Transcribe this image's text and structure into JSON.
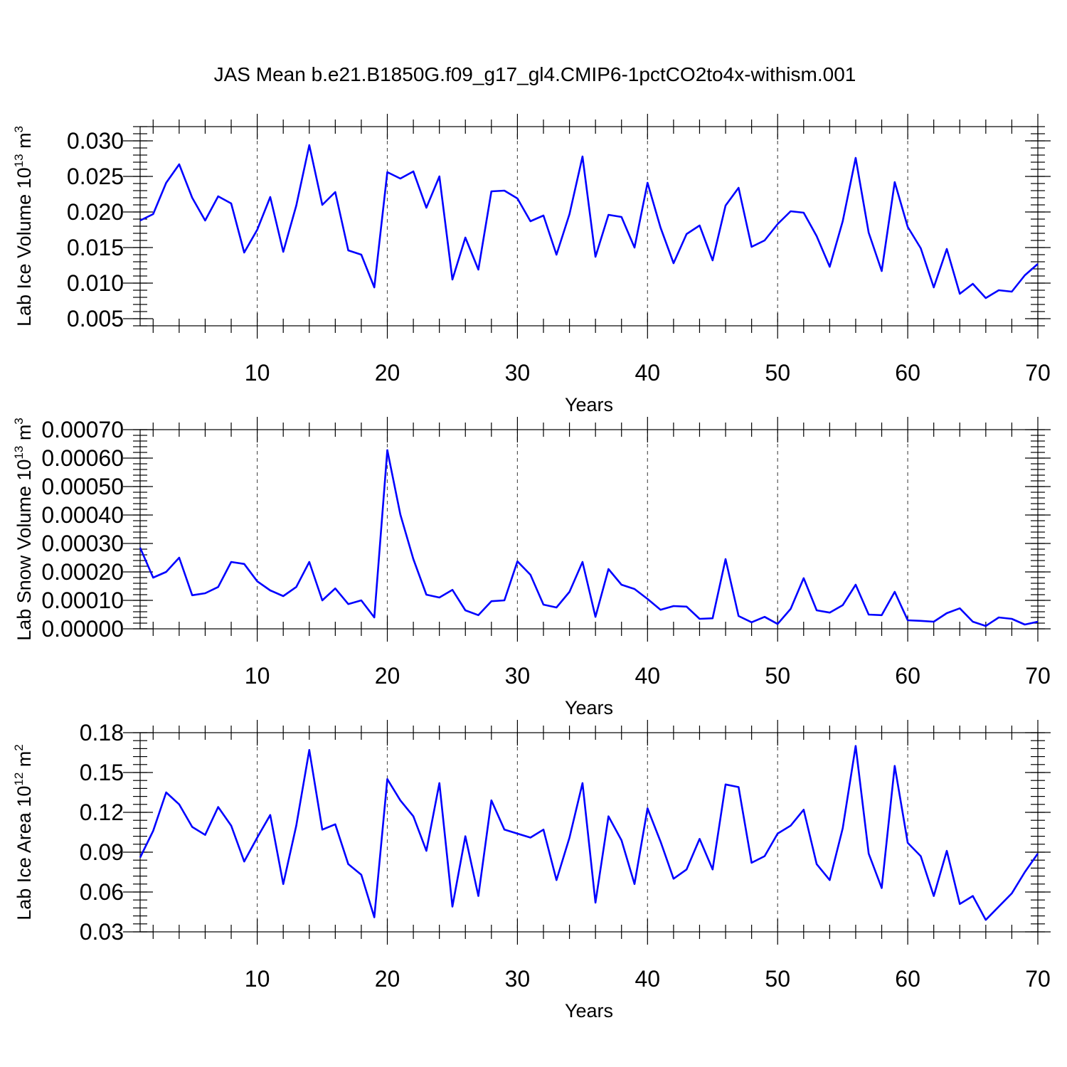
{
  "title": "JAS Mean b.e21.B1850G.f09_g17_gl4.CMIP6-1pctCO2to4x-withism.001",
  "chart_data": [
    {
      "type": "line",
      "ylabel": "Lab Ice Volume 10",
      "ylabel_exp": "13",
      "ylabel_unit": " m",
      "ylabel_unit_exp": "3",
      "xlabel": "Years",
      "xlim": [
        1,
        70
      ],
      "ylim": [
        0.004,
        0.032
      ],
      "yticks": [
        0.005,
        0.01,
        0.015,
        0.02,
        0.025,
        0.03
      ],
      "ytick_labels": [
        "0.005",
        "0.010",
        "0.015",
        "0.020",
        "0.025",
        "0.030"
      ],
      "xticks": [
        10,
        20,
        30,
        40,
        50,
        60,
        70
      ],
      "xtick_labels": [
        "10",
        "20",
        "30",
        "40",
        "50",
        "60",
        "70"
      ],
      "color": "#0000ff",
      "values": [
        0.0188,
        0.0197,
        0.0241,
        0.0267,
        0.022,
        0.0188,
        0.0222,
        0.0212,
        0.0143,
        0.0175,
        0.0221,
        0.0144,
        0.0209,
        0.0294,
        0.021,
        0.0228,
        0.0146,
        0.014,
        0.0094,
        0.0256,
        0.0247,
        0.0257,
        0.0206,
        0.025,
        0.0105,
        0.0164,
        0.0119,
        0.0229,
        0.023,
        0.0219,
        0.0187,
        0.0195,
        0.014,
        0.0197,
        0.0278,
        0.0137,
        0.0196,
        0.0193,
        0.015,
        0.0241,
        0.0178,
        0.0128,
        0.0169,
        0.0181,
        0.0132,
        0.0209,
        0.0234,
        0.0151,
        0.016,
        0.0183,
        0.0201,
        0.0199,
        0.0166,
        0.0123,
        0.0187,
        0.0276,
        0.0171,
        0.0117,
        0.0242,
        0.0179,
        0.0149,
        0.0094,
        0.0148,
        0.0085,
        0.0099,
        0.0079,
        0.009,
        0.0088,
        0.0111,
        0.0127
      ]
    },
    {
      "type": "line",
      "ylabel": "Lab Snow Volume 10",
      "ylabel_exp": "13",
      "ylabel_unit": " m",
      "ylabel_unit_exp": "3",
      "xlabel": "Years",
      "xlim": [
        1,
        70
      ],
      "ylim": [
        0.0,
        0.0007
      ],
      "yticks": [
        0.0,
        0.0001,
        0.0002,
        0.0003,
        0.0004,
        0.0005,
        0.0006,
        0.0007
      ],
      "ytick_labels": [
        "0.00000",
        "0.00010",
        "0.00020",
        "0.00030",
        "0.00040",
        "0.00050",
        "0.00060",
        "0.00070"
      ],
      "xticks": [
        10,
        20,
        30,
        40,
        50,
        60,
        70
      ],
      "xtick_labels": [
        "10",
        "20",
        "30",
        "40",
        "50",
        "60",
        "70"
      ],
      "color": "#0000ff",
      "values": [
        0.000285,
        0.00018,
        0.0002,
        0.00025,
        0.000118,
        0.000125,
        0.000147,
        0.000235,
        0.000228,
        0.000167,
        0.000135,
        0.000115,
        0.000147,
        0.000235,
        0.0001,
        0.000142,
        8.7e-05,
        0.0001,
        4e-05,
        0.000628,
        0.000402,
        0.000245,
        0.00012,
        0.00011,
        0.000137,
        6.5e-05,
        4.8e-05,
        9.7e-05,
        0.0001,
        0.000237,
        0.00019,
        8.5e-05,
        7.5e-05,
        0.00013,
        0.000235,
        4.2e-05,
        0.00021,
        0.000155,
        0.00014,
        0.000105,
        6.7e-05,
        8e-05,
        7.8e-05,
        3.5e-05,
        3.7e-05,
        0.000245,
        4.5e-05,
        2.3e-05,
        4.2e-05,
        1.7e-05,
        7e-05,
        0.000178,
        6.5e-05,
        5.7e-05,
        8.3e-05,
        0.000155,
        5e-05,
        4.8e-05,
        0.00013,
        3e-05,
        2.8e-05,
        2.5e-05,
        5.5e-05,
        7.2e-05,
        2.5e-05,
        1e-05,
        4e-05,
        3.5e-05,
        1.5e-05,
        2.5e-05
      ]
    },
    {
      "type": "line",
      "ylabel": "Lab Ice Area 10",
      "ylabel_exp": "12",
      "ylabel_unit": " m",
      "ylabel_unit_exp": "2",
      "xlabel": "Years",
      "xlim": [
        1,
        70
      ],
      "ylim": [
        0.03,
        0.18
      ],
      "yticks": [
        0.03,
        0.06,
        0.09,
        0.12,
        0.15,
        0.18
      ],
      "ytick_labels": [
        "0.03",
        "0.06",
        "0.09",
        "0.12",
        "0.15",
        "0.18"
      ],
      "xticks": [
        10,
        20,
        30,
        40,
        50,
        60,
        70
      ],
      "xtick_labels": [
        "10",
        "20",
        "30",
        "40",
        "50",
        "60",
        "70"
      ],
      "color": "#0000ff",
      "values": [
        0.086,
        0.106,
        0.135,
        0.126,
        0.109,
        0.103,
        0.124,
        0.11,
        0.083,
        0.101,
        0.118,
        0.066,
        0.11,
        0.167,
        0.107,
        0.111,
        0.081,
        0.073,
        0.041,
        0.145,
        0.129,
        0.117,
        0.091,
        0.142,
        0.049,
        0.102,
        0.057,
        0.129,
        0.107,
        0.104,
        0.101,
        0.107,
        0.069,
        0.101,
        0.142,
        0.052,
        0.117,
        0.099,
        0.066,
        0.123,
        0.098,
        0.07,
        0.077,
        0.1,
        0.077,
        0.141,
        0.139,
        0.082,
        0.087,
        0.104,
        0.11,
        0.122,
        0.081,
        0.069,
        0.108,
        0.17,
        0.089,
        0.063,
        0.155,
        0.097,
        0.087,
        0.057,
        0.091,
        0.051,
        0.057,
        0.039,
        0.049,
        0.059,
        0.075,
        0.089
      ]
    }
  ]
}
